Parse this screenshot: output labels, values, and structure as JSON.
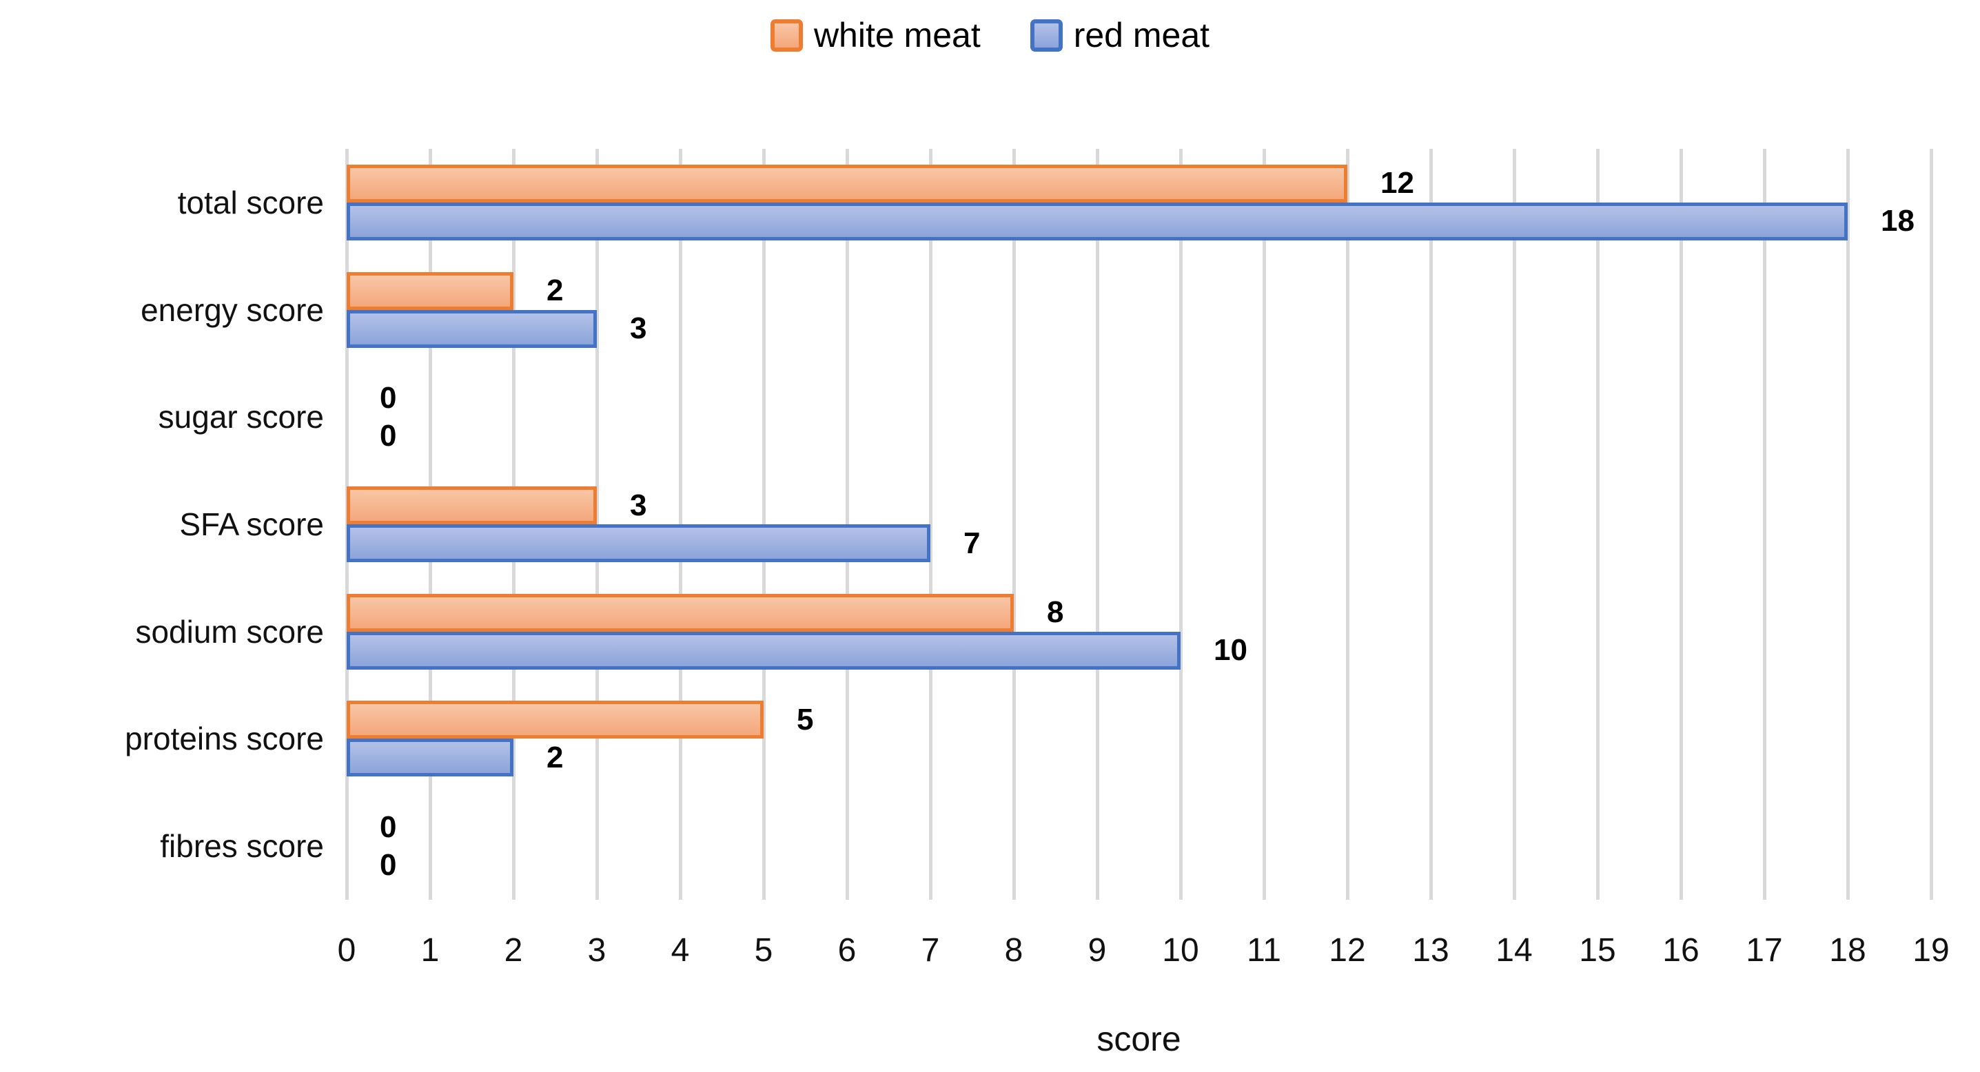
{
  "chart_data": {
    "type": "bar",
    "orientation": "horizontal",
    "title": "",
    "xlabel": "score",
    "ylabel": "",
    "categories": [
      "total score",
      "energy score",
      "sugar score",
      "SFA score",
      "sodium score",
      "proteins score",
      "fibres score"
    ],
    "series": [
      {
        "name": "white meat",
        "values": [
          12,
          2,
          0,
          3,
          8,
          5,
          0
        ],
        "border_color": "#ed7d31",
        "fill_top": "#f8c6a6",
        "fill_bottom": "#f4a77b"
      },
      {
        "name": "red meat",
        "values": [
          18,
          3,
          0,
          7,
          10,
          2,
          0
        ],
        "border_color": "#4472c4",
        "fill_top": "#b3c1e7",
        "fill_bottom": "#8ca4da"
      }
    ],
    "data_labels": [
      [
        "12",
        "2",
        "0",
        "3",
        "8",
        "5",
        "0"
      ],
      [
        "18",
        "3",
        "0",
        "7",
        "10",
        "2",
        "0"
      ]
    ],
    "xlim": [
      0,
      19
    ],
    "xticks": [
      "0",
      "1",
      "2",
      "3",
      "4",
      "5",
      "6",
      "7",
      "8",
      "9",
      "10",
      "11",
      "12",
      "13",
      "14",
      "15",
      "16",
      "17",
      "18",
      "19"
    ],
    "grid": true,
    "gridline_color": "#d9d9d9",
    "legend_position": "top-center",
    "background_color": "#ffffff",
    "text_color": "#000000"
  }
}
